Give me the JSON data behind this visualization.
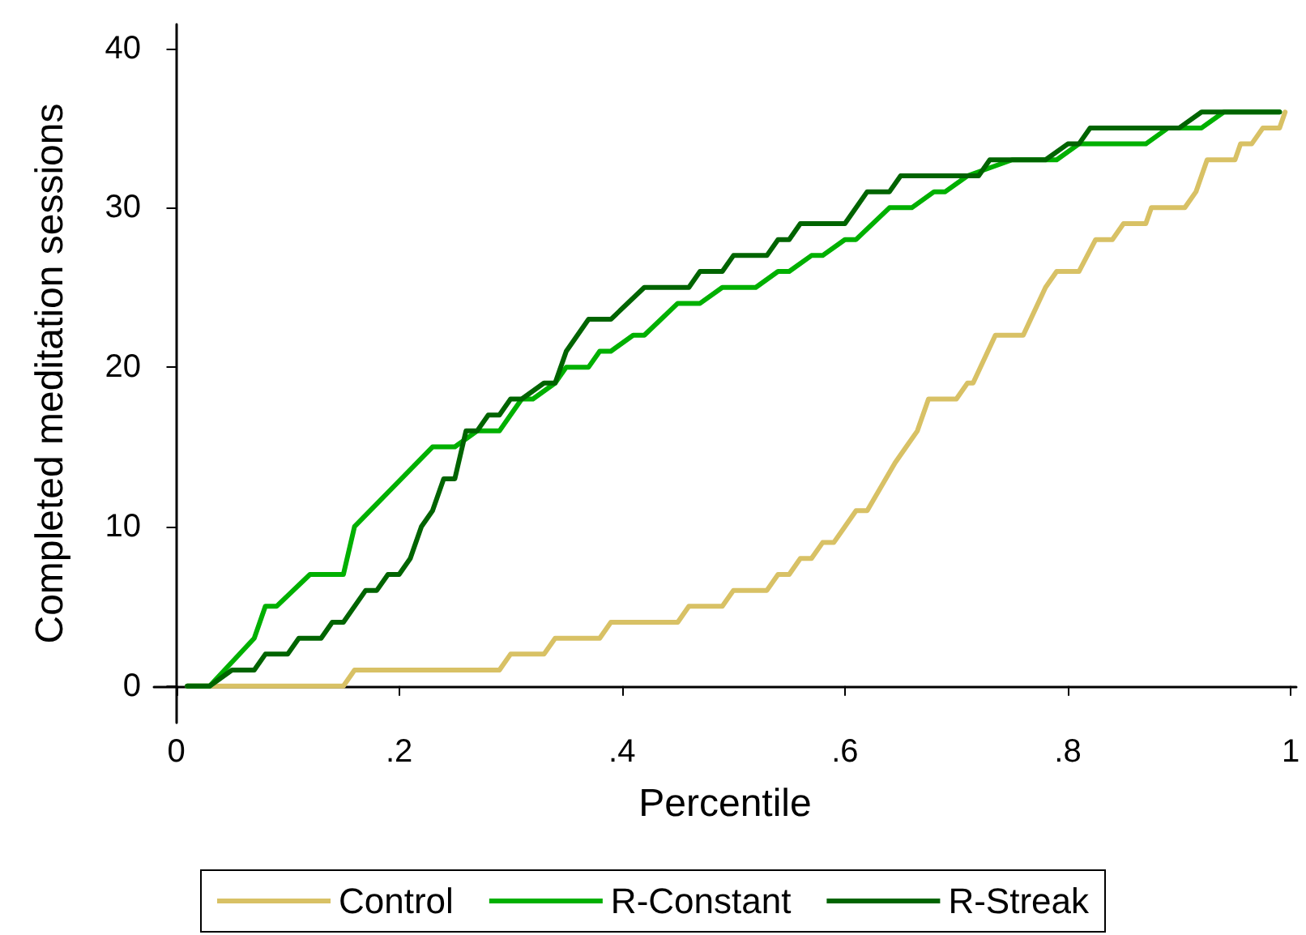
{
  "chart_data": {
    "type": "line",
    "xlabel": "Percentile",
    "ylabel": "Completed meditation sessions",
    "xlim": [
      -0.02,
      1.005
    ],
    "ylim": [
      -2.3,
      41.5
    ],
    "xticks": [
      0,
      {
        "value": 0.2,
        "label": ".2"
      },
      {
        "value": 0.4,
        "label": ".4"
      },
      {
        "value": 0.6,
        "label": ".6"
      },
      {
        "value": 0.8,
        "label": ".8"
      },
      1
    ],
    "yticks": [
      0,
      10,
      20,
      30,
      40
    ],
    "grid": false,
    "legend": "bottom",
    "marker": "none",
    "line_style": "solid",
    "series": [
      {
        "name": "Control",
        "color": "#d8c165",
        "x": [
          0.01,
          0.15,
          0.16,
          0.29,
          0.3,
          0.33,
          0.34,
          0.38,
          0.39,
          0.45,
          0.46,
          0.49,
          0.5,
          0.53,
          0.54,
          0.55,
          0.56,
          0.57,
          0.58,
          0.59,
          0.6,
          0.61,
          0.62,
          0.645,
          0.655,
          0.665,
          0.675,
          0.7,
          0.71,
          0.715,
          0.735,
          0.76,
          0.78,
          0.79,
          0.81,
          0.825,
          0.84,
          0.85,
          0.87,
          0.875,
          0.905,
          0.915,
          0.925,
          0.95,
          0.955,
          0.965,
          0.975,
          0.99,
          0.995
        ],
        "values": [
          0,
          0,
          1,
          1,
          2,
          2,
          3,
          3,
          4,
          4,
          5,
          5,
          6,
          6,
          7,
          7,
          8,
          8,
          9,
          9,
          10,
          11,
          11,
          14,
          15,
          16,
          18,
          18,
          19,
          19,
          22,
          22,
          25,
          26,
          26,
          28,
          28,
          29,
          29,
          30,
          30,
          31,
          33,
          33,
          34,
          34,
          35,
          35,
          36
        ]
      },
      {
        "name": "R-Constant",
        "color": "#00b000",
        "x": [
          0.01,
          0.03,
          0.07,
          0.08,
          0.09,
          0.12,
          0.15,
          0.16,
          0.23,
          0.25,
          0.27,
          0.29,
          0.31,
          0.32,
          0.34,
          0.35,
          0.37,
          0.38,
          0.39,
          0.41,
          0.42,
          0.45,
          0.47,
          0.49,
          0.52,
          0.54,
          0.55,
          0.57,
          0.58,
          0.6,
          0.61,
          0.64,
          0.66,
          0.68,
          0.69,
          0.71,
          0.75,
          0.79,
          0.81,
          0.87,
          0.89,
          0.92,
          0.94,
          0.99
        ],
        "values": [
          0,
          0,
          3,
          5,
          5,
          7,
          7,
          10,
          15,
          15,
          16,
          16,
          18,
          18,
          19,
          20,
          20,
          21,
          21,
          22,
          22,
          24,
          24,
          25,
          25,
          26,
          26,
          27,
          27,
          28,
          28,
          30,
          30,
          31,
          31,
          32,
          33,
          33,
          34,
          34,
          35,
          35,
          36,
          36
        ]
      },
      {
        "name": "R-Streak",
        "color": "#006400",
        "x": [
          0.01,
          0.03,
          0.05,
          0.07,
          0.08,
          0.1,
          0.11,
          0.13,
          0.14,
          0.15,
          0.17,
          0.18,
          0.19,
          0.2,
          0.21,
          0.22,
          0.23,
          0.24,
          0.25,
          0.26,
          0.27,
          0.28,
          0.29,
          0.3,
          0.31,
          0.33,
          0.34,
          0.35,
          0.37,
          0.39,
          0.42,
          0.46,
          0.47,
          0.49,
          0.5,
          0.53,
          0.54,
          0.55,
          0.56,
          0.6,
          0.62,
          0.64,
          0.65,
          0.72,
          0.73,
          0.78,
          0.8,
          0.81,
          0.82,
          0.9,
          0.92,
          0.99
        ],
        "values": [
          0,
          0,
          1,
          1,
          2,
          2,
          3,
          3,
          4,
          4,
          6,
          6,
          7,
          7,
          8,
          10,
          11,
          13,
          13,
          16,
          16,
          17,
          17,
          18,
          18,
          19,
          19,
          21,
          23,
          23,
          25,
          25,
          26,
          26,
          27,
          27,
          28,
          28,
          29,
          29,
          31,
          31,
          32,
          32,
          33,
          33,
          34,
          34,
          35,
          35,
          36,
          36
        ]
      }
    ]
  }
}
